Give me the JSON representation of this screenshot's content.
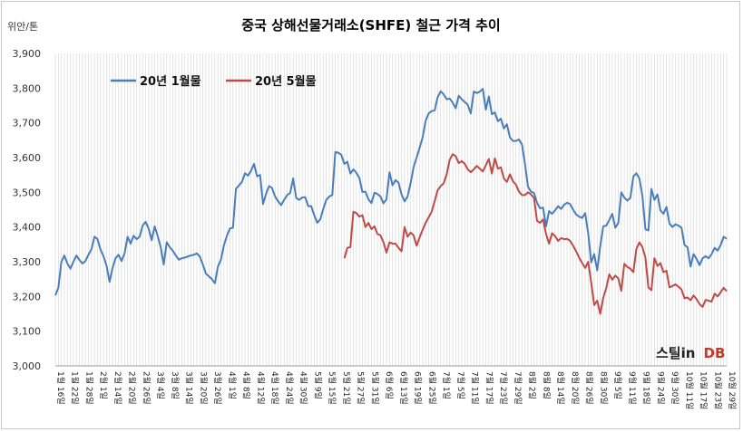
{
  "chart_data": {
    "type": "line",
    "title": "중국 상해선물거래소(SHFE)  철근 가격 추이",
    "ylabel": "위안/톤",
    "ylim": [
      3000,
      3900
    ],
    "yticks": [
      "3,000",
      "3,100",
      "3,200",
      "3,300",
      "3,400",
      "3,500",
      "3,600",
      "3,700",
      "3,800",
      "3,900"
    ],
    "grid": "vertical",
    "legend_position": "top-left",
    "x_label_suffix": "일",
    "x_labels": [
      "1월 16",
      "1월 22",
      "1월 28",
      "2월 1",
      "2월 14",
      "2월 20",
      "2월 26",
      "3월 4",
      "3월 8",
      "3월 14",
      "3월 20",
      "3월 26",
      "4월 1",
      "4월 8",
      "4월 12",
      "4월 18",
      "4월 24",
      "4월 30",
      "5월 9",
      "5월 15",
      "5월 21",
      "5월 27",
      "5월 31",
      "6월 6",
      "6월 13",
      "6월 19",
      "6월 25",
      "7월 1",
      "7월 5",
      "7월 11",
      "7월 17",
      "7월 23",
      "7월 29",
      "8월 2",
      "8월 8",
      "8월 14",
      "8월 20",
      "8월 26",
      "8월 30",
      "9월 5",
      "9월 11",
      "9월 18",
      "9월 24",
      "9월 30",
      "10월 11",
      "10월 17",
      "10월 23",
      "10월 29"
    ],
    "series": [
      {
        "name": "20년 1월물",
        "color": "#4a7ebb",
        "values": [
          3203,
          3225,
          3300,
          3318,
          3295,
          3280,
          3300,
          3318,
          3305,
          3295,
          3302,
          3320,
          3336,
          3372,
          3365,
          3335,
          3316,
          3289,
          3242,
          3282,
          3310,
          3320,
          3302,
          3324,
          3372,
          3352,
          3375,
          3365,
          3372,
          3404,
          3415,
          3395,
          3362,
          3402,
          3374,
          3342,
          3292,
          3356,
          3342,
          3332,
          3318,
          3306,
          3310,
          3312,
          3315,
          3318,
          3320,
          3324,
          3315,
          3292,
          3266,
          3258,
          3250,
          3238,
          3286,
          3306,
          3347,
          3375,
          3396,
          3398,
          3510,
          3520,
          3530,
          3555,
          3548,
          3562,
          3582,
          3546,
          3550,
          3466,
          3496,
          3518,
          3512,
          3488,
          3474,
          3463,
          3478,
          3492,
          3498,
          3540,
          3484,
          3478,
          3485,
          3486,
          3460,
          3460,
          3434,
          3412,
          3422,
          3452,
          3478,
          3488,
          3492,
          3616,
          3614,
          3608,
          3582,
          3588,
          3554,
          3566,
          3556,
          3541,
          3501,
          3502,
          3480,
          3469,
          3499,
          3495,
          3488,
          3468,
          3480,
          3558,
          3520,
          3535,
          3528,
          3494,
          3474,
          3488,
          3526,
          3572,
          3600,
          3628,
          3658,
          3706,
          3727,
          3734,
          3736,
          3774,
          3791,
          3782,
          3768,
          3770,
          3758,
          3742,
          3778,
          3768,
          3760,
          3752,
          3727,
          3790,
          3786,
          3790,
          3798,
          3738,
          3776,
          3725,
          3730,
          3705,
          3712,
          3684,
          3696,
          3658,
          3648,
          3648,
          3652,
          3638,
          3582,
          3516,
          3502,
          3498,
          3470,
          3454,
          3456,
          3402,
          3446,
          3438,
          3448,
          3460,
          3452,
          3464,
          3470,
          3466,
          3450,
          3436,
          3430,
          3426,
          3440,
          3382,
          3298,
          3322,
          3275,
          3345,
          3402,
          3404,
          3420,
          3438,
          3398,
          3412,
          3500,
          3485,
          3476,
          3484,
          3545,
          3555,
          3540,
          3490,
          3394,
          3390,
          3510,
          3478,
          3494,
          3448,
          3438,
          3458,
          3410,
          3400,
          3408,
          3404,
          3398,
          3348,
          3342,
          3286,
          3322,
          3308,
          3290,
          3310,
          3316,
          3310,
          3322,
          3340,
          3332,
          3348,
          3372,
          3366
        ]
      },
      {
        "name": "20년 5월물",
        "color": "#be4b48",
        "values": [
          3310,
          3340,
          3342,
          3444,
          3440,
          3430,
          3434,
          3400,
          3412,
          3394,
          3402,
          3380,
          3376,
          3356,
          3326,
          3356,
          3352,
          3352,
          3340,
          3330,
          3400,
          3372,
          3384,
          3376,
          3346,
          3370,
          3392,
          3412,
          3428,
          3444,
          3474,
          3506,
          3518,
          3526,
          3552,
          3594,
          3610,
          3604,
          3584,
          3590,
          3582,
          3566,
          3558,
          3566,
          3576,
          3568,
          3560,
          3578,
          3596,
          3554,
          3598,
          3568,
          3572,
          3540,
          3530,
          3552,
          3532,
          3522,
          3502,
          3492,
          3492,
          3500,
          3494,
          3484,
          3418,
          3412,
          3422,
          3380,
          3352,
          3382,
          3374,
          3360,
          3368,
          3365,
          3366,
          3360,
          3346,
          3330,
          3312,
          3296,
          3282,
          3300,
          3240,
          3175,
          3188,
          3150,
          3196,
          3224,
          3264,
          3248,
          3260,
          3252,
          3216,
          3294,
          3285,
          3280,
          3270,
          3336,
          3356,
          3342,
          3312,
          3226,
          3218,
          3310,
          3288,
          3296,
          3270,
          3274,
          3226,
          3230,
          3235,
          3228,
          3220,
          3195,
          3197,
          3189,
          3203,
          3192,
          3178,
          3170,
          3190,
          3188,
          3185,
          3208,
          3200,
          3212,
          3225,
          3215
        ]
      }
    ]
  },
  "watermark": {
    "part1": "스틸in",
    "part2": "DB",
    "color2": "#c0392b"
  }
}
